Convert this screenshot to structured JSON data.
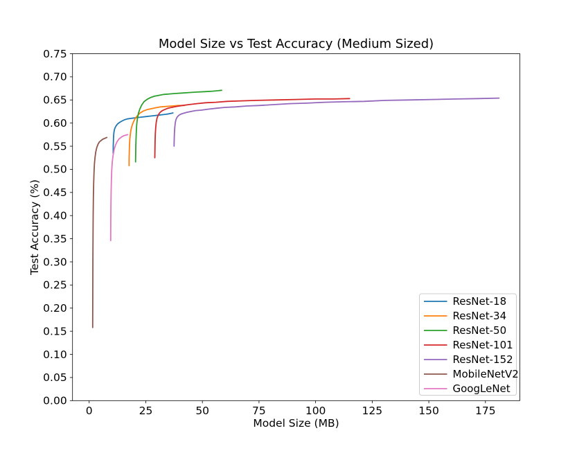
{
  "figure": {
    "background": "#ffffff",
    "text_color": "#000000",
    "legend_border_color": "#cccccc",
    "legend_background": "#ffffff"
  },
  "chart_data": {
    "type": "line",
    "title": "Model Size vs Test Accuracy (Medium Sized)",
    "xlabel": "Model Size (MB)",
    "ylabel": "Test Accuracy (%)",
    "xlim": [
      -7.35,
      190.2
    ],
    "ylim": [
      0,
      0.75
    ],
    "grid": false,
    "legend_position": "lower right",
    "x_ticks": [
      {
        "value": 0,
        "label": "0"
      },
      {
        "value": 25,
        "label": "25"
      },
      {
        "value": 50,
        "label": "50"
      },
      {
        "value": 75,
        "label": "75"
      },
      {
        "value": 100,
        "label": "100"
      },
      {
        "value": 125,
        "label": "125"
      },
      {
        "value": 150,
        "label": "150"
      },
      {
        "value": 175,
        "label": "175"
      }
    ],
    "y_ticks": [
      {
        "value": 0.0,
        "label": "0.00"
      },
      {
        "value": 0.05,
        "label": "0.05"
      },
      {
        "value": 0.1,
        "label": "0.10"
      },
      {
        "value": 0.15,
        "label": "0.15"
      },
      {
        "value": 0.2,
        "label": "0.20"
      },
      {
        "value": 0.25,
        "label": "0.25"
      },
      {
        "value": 0.3,
        "label": "0.30"
      },
      {
        "value": 0.35,
        "label": "0.35"
      },
      {
        "value": 0.4,
        "label": "0.40"
      },
      {
        "value": 0.45,
        "label": "0.45"
      },
      {
        "value": 0.5,
        "label": "0.50"
      },
      {
        "value": 0.55,
        "label": "0.55"
      },
      {
        "value": 0.6,
        "label": "0.60"
      },
      {
        "value": 0.65,
        "label": "0.65"
      },
      {
        "value": 0.7,
        "label": "0.70"
      },
      {
        "value": 0.75,
        "label": "0.75"
      }
    ],
    "series": [
      {
        "name": "ResNet-18",
        "color": "#1f77b4",
        "points": [
          [
            10.6,
            0.535
          ],
          [
            10.65,
            0.552
          ],
          [
            10.72,
            0.563
          ],
          [
            10.8,
            0.572
          ],
          [
            10.95,
            0.58
          ],
          [
            11.15,
            0.586
          ],
          [
            11.45,
            0.59
          ],
          [
            11.9,
            0.594
          ],
          [
            12.5,
            0.598
          ],
          [
            13.3,
            0.601
          ],
          [
            14.3,
            0.604
          ],
          [
            15.5,
            0.607
          ],
          [
            16.8,
            0.609
          ],
          [
            18.2,
            0.61
          ],
          [
            19.8,
            0.611
          ],
          [
            21.5,
            0.612
          ],
          [
            23.2,
            0.613
          ],
          [
            25.0,
            0.614
          ],
          [
            26.8,
            0.615
          ],
          [
            28.6,
            0.616
          ],
          [
            30.4,
            0.617
          ],
          [
            32.2,
            0.618
          ],
          [
            33.8,
            0.619
          ],
          [
            35.2,
            0.62
          ],
          [
            36.2,
            0.621
          ],
          [
            37.0,
            0.622
          ]
        ]
      },
      {
        "name": "ResNet-34",
        "color": "#ff7f0e",
        "points": [
          [
            17.6,
            0.508
          ],
          [
            17.65,
            0.525
          ],
          [
            17.72,
            0.541
          ],
          [
            17.82,
            0.554
          ],
          [
            17.95,
            0.565
          ],
          [
            18.15,
            0.575
          ],
          [
            18.45,
            0.585
          ],
          [
            18.9,
            0.594
          ],
          [
            19.5,
            0.602
          ],
          [
            20.3,
            0.61
          ],
          [
            21.3,
            0.616
          ],
          [
            22.5,
            0.622
          ],
          [
            23.9,
            0.626
          ],
          [
            25.5,
            0.629
          ],
          [
            27.3,
            0.631
          ],
          [
            29.3,
            0.633
          ],
          [
            31.5,
            0.635
          ],
          [
            34.0,
            0.636
          ],
          [
            36.6,
            0.637
          ],
          [
            39.3,
            0.638
          ],
          [
            42.0,
            0.638
          ]
        ]
      },
      {
        "name": "ResNet-50",
        "color": "#2ca02c",
        "points": [
          [
            20.5,
            0.516
          ],
          [
            20.55,
            0.535
          ],
          [
            20.62,
            0.553
          ],
          [
            20.72,
            0.57
          ],
          [
            20.85,
            0.585
          ],
          [
            21.05,
            0.599
          ],
          [
            21.35,
            0.611
          ],
          [
            21.8,
            0.622
          ],
          [
            22.4,
            0.631
          ],
          [
            23.2,
            0.639
          ],
          [
            24.2,
            0.646
          ],
          [
            25.5,
            0.651
          ],
          [
            27.0,
            0.655
          ],
          [
            28.8,
            0.658
          ],
          [
            30.8,
            0.66
          ],
          [
            33.0,
            0.662
          ],
          [
            35.5,
            0.663
          ],
          [
            38.2,
            0.664
          ],
          [
            41.0,
            0.665
          ],
          [
            44.0,
            0.666
          ],
          [
            47.5,
            0.667
          ],
          [
            51.0,
            0.668
          ],
          [
            54.5,
            0.669
          ],
          [
            57.0,
            0.67
          ],
          [
            58.5,
            0.671
          ]
        ]
      },
      {
        "name": "ResNet-101",
        "color": "#d62728",
        "points": [
          [
            29.0,
            0.525
          ],
          [
            29.05,
            0.543
          ],
          [
            29.12,
            0.56
          ],
          [
            29.22,
            0.576
          ],
          [
            29.38,
            0.59
          ],
          [
            29.6,
            0.601
          ],
          [
            29.95,
            0.61
          ],
          [
            30.45,
            0.617
          ],
          [
            31.1,
            0.622
          ],
          [
            32.0,
            0.626
          ],
          [
            33.2,
            0.629
          ],
          [
            34.7,
            0.632
          ],
          [
            36.5,
            0.634
          ],
          [
            38.6,
            0.636
          ],
          [
            41.0,
            0.638
          ],
          [
            44.0,
            0.64
          ],
          [
            47.5,
            0.642
          ],
          [
            51.5,
            0.644
          ],
          [
            56.0,
            0.645
          ],
          [
            61.0,
            0.647
          ],
          [
            67.0,
            0.648
          ],
          [
            74.0,
            0.649
          ],
          [
            82.0,
            0.65
          ],
          [
            91.0,
            0.651
          ],
          [
            100.0,
            0.652
          ],
          [
            108.0,
            0.652
          ],
          [
            115.0,
            0.653
          ]
        ]
      },
      {
        "name": "ResNet-152",
        "color": "#9467bd",
        "points": [
          [
            37.5,
            0.55
          ],
          [
            37.55,
            0.565
          ],
          [
            37.65,
            0.578
          ],
          [
            37.8,
            0.59
          ],
          [
            38.0,
            0.6
          ],
          [
            38.3,
            0.607
          ],
          [
            38.75,
            0.612
          ],
          [
            39.4,
            0.616
          ],
          [
            40.3,
            0.619
          ],
          [
            41.5,
            0.621
          ],
          [
            43.0,
            0.623
          ],
          [
            44.8,
            0.625
          ],
          [
            47.0,
            0.627
          ],
          [
            49.5,
            0.628
          ],
          [
            52.5,
            0.63
          ],
          [
            56.0,
            0.632
          ],
          [
            60.0,
            0.634
          ],
          [
            64.5,
            0.635
          ],
          [
            69.5,
            0.637
          ],
          [
            75.0,
            0.638
          ],
          [
            81.5,
            0.64
          ],
          [
            88.5,
            0.642
          ],
          [
            96.0,
            0.643
          ],
          [
            104.0,
            0.645
          ],
          [
            112.5,
            0.646
          ],
          [
            121.5,
            0.647
          ],
          [
            131.0,
            0.649
          ],
          [
            141.0,
            0.65
          ],
          [
            151.5,
            0.651
          ],
          [
            162.0,
            0.652
          ],
          [
            172.0,
            0.653
          ],
          [
            181.0,
            0.654
          ]
        ]
      },
      {
        "name": "MobileNetV2",
        "color": "#8c564b",
        "points": [
          [
            1.55,
            0.158
          ],
          [
            1.57,
            0.205
          ],
          [
            1.6,
            0.255
          ],
          [
            1.64,
            0.305
          ],
          [
            1.69,
            0.355
          ],
          [
            1.76,
            0.4
          ],
          [
            1.85,
            0.438
          ],
          [
            1.97,
            0.468
          ],
          [
            2.12,
            0.492
          ],
          [
            2.32,
            0.511
          ],
          [
            2.58,
            0.526
          ],
          [
            2.92,
            0.538
          ],
          [
            3.35,
            0.547
          ],
          [
            3.88,
            0.554
          ],
          [
            4.5,
            0.559
          ],
          [
            5.2,
            0.562
          ],
          [
            6.0,
            0.565
          ],
          [
            6.9,
            0.567
          ],
          [
            7.8,
            0.569
          ]
        ]
      },
      {
        "name": "GoogLeNet",
        "color": "#e377c2",
        "points": [
          [
            9.5,
            0.346
          ],
          [
            9.54,
            0.385
          ],
          [
            9.6,
            0.42
          ],
          [
            9.68,
            0.45
          ],
          [
            9.8,
            0.476
          ],
          [
            9.97,
            0.498
          ],
          [
            10.2,
            0.516
          ],
          [
            10.55,
            0.53
          ],
          [
            11.0,
            0.542
          ],
          [
            11.6,
            0.552
          ],
          [
            12.35,
            0.56
          ],
          [
            13.25,
            0.566
          ],
          [
            14.3,
            0.57
          ],
          [
            15.4,
            0.573
          ],
          [
            16.3,
            0.574
          ],
          [
            17.0,
            0.575
          ]
        ]
      }
    ]
  }
}
